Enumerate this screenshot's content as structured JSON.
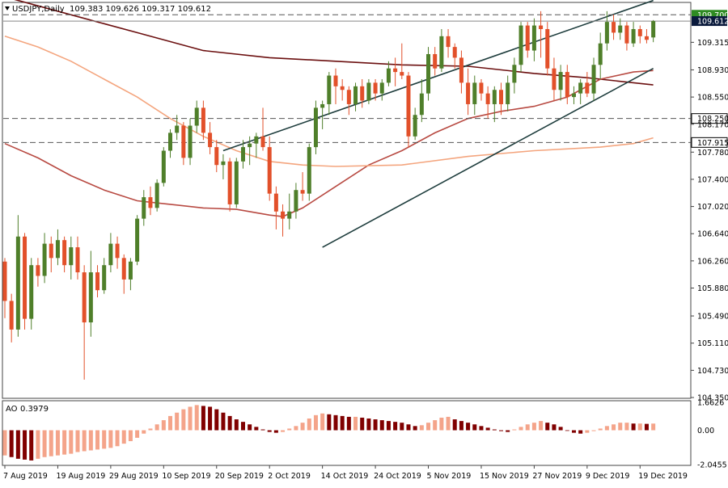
{
  "header": {
    "symbol": "USDJPY,Daily",
    "ohlc": "109.383 109.626 109.317 109.612"
  },
  "indicator": {
    "name": "AO",
    "value": "0.3979"
  },
  "colors": {
    "bull": "#4f7f2a",
    "bear": "#e2502a",
    "ma_slow": "#6b0f0f",
    "ma_mid": "#b84a42",
    "ma_long": "#f4a57e",
    "channel": "#1e3d3d",
    "grid": "#dddddd",
    "price_tag_green": "#2e8b22",
    "price_tag_dark": "#0a1a3c",
    "ao_up": "#f4a48a",
    "ao_down": "#800000"
  },
  "chart_data": [
    {
      "type": "candlestick",
      "title": "USDJPY,Daily",
      "x": [
        "7 Aug 2019",
        "8 Aug 2019",
        "9 Aug 2019",
        "12 Aug 2019",
        "13 Aug 2019",
        "14 Aug 2019",
        "15 Aug 2019",
        "16 Aug 2019",
        "19 Aug 2019",
        "20 Aug 2019",
        "21 Aug 2019",
        "22 Aug 2019",
        "23 Aug 2019",
        "26 Aug 2019",
        "27 Aug 2019",
        "28 Aug 2019",
        "29 Aug 2019",
        "30 Aug 2019",
        "2 Sep 2019",
        "3 Sep 2019",
        "4 Sep 2019",
        "5 Sep 2019",
        "6 Sep 2019",
        "9 Sep 2019",
        "10 Sep 2019",
        "11 Sep 2019",
        "12 Sep 2019",
        "13 Sep 2019",
        "16 Sep 2019",
        "17 Sep 2019",
        "18 Sep 2019",
        "19 Sep 2019",
        "20 Sep 2019",
        "23 Sep 2019",
        "24 Sep 2019",
        "25 Sep 2019",
        "26 Sep 2019",
        "27 Sep 2019",
        "30 Sep 2019",
        "1 Oct 2019",
        "2 Oct 2019",
        "3 Oct 2019",
        "4 Oct 2019",
        "7 Oct 2019",
        "8 Oct 2019",
        "9 Oct 2019",
        "10 Oct 2019",
        "11 Oct 2019",
        "14 Oct 2019",
        "15 Oct 2019",
        "16 Oct 2019",
        "17 Oct 2019",
        "18 Oct 2019",
        "21 Oct 2019",
        "22 Oct 2019",
        "23 Oct 2019",
        "24 Oct 2019",
        "25 Oct 2019",
        "28 Oct 2019",
        "29 Oct 2019",
        "30 Oct 2019",
        "31 Oct 2019",
        "1 Nov 2019",
        "4 Nov 2019",
        "5 Nov 2019",
        "6 Nov 2019",
        "7 Nov 2019",
        "8 Nov 2019",
        "11 Nov 2019",
        "12 Nov 2019",
        "13 Nov 2019",
        "14 Nov 2019",
        "15 Nov 2019",
        "18 Nov 2019",
        "19 Nov 2019",
        "20 Nov 2019",
        "21 Nov 2019",
        "22 Nov 2019",
        "25 Nov 2019",
        "26 Nov 2019",
        "27 Nov 2019",
        "28 Nov 2019",
        "29 Nov 2019",
        "2 Dec 2019",
        "3 Dec 2019",
        "4 Dec 2019",
        "5 Dec 2019",
        "6 Dec 2019",
        "9 Dec 2019",
        "10 Dec 2019",
        "11 Dec 2019",
        "12 Dec 2019",
        "13 Dec 2019",
        "16 Dec 2019",
        "17 Dec 2019",
        "18 Dec 2019",
        "19 Dec 2019",
        "20 Dec 2019",
        "23 Dec 2019"
      ],
      "x_tick_labels": [
        "7 Aug 2019",
        "19 Aug 2019",
        "29 Aug 2019",
        "10 Sep 2019",
        "20 Sep 2019",
        "2 Oct 2019",
        "14 Oct 2019",
        "24 Oct 2019",
        "5 Nov 2019",
        "15 Nov 2019",
        "27 Nov 2019",
        "9 Dec 2019",
        "19 Dec 2019"
      ],
      "y_tick_labels": [
        "109.315",
        "108.930",
        "108.550",
        "108.170",
        "107.780",
        "107.400",
        "107.020",
        "106.640",
        "106.260",
        "105.880",
        "105.490",
        "105.110",
        "104.730",
        "104.350"
      ],
      "ylim": [
        104.35,
        109.85
      ],
      "ohlc": [
        [
          106.25,
          106.3,
          105.46,
          105.7
        ],
        [
          105.7,
          105.8,
          105.12,
          105.3
        ],
        [
          105.3,
          106.9,
          105.2,
          106.6
        ],
        [
          106.6,
          106.65,
          105.3,
          105.45
        ],
        [
          105.45,
          106.3,
          105.3,
          106.2
        ],
        [
          106.2,
          106.3,
          105.9,
          106.05
        ],
        [
          106.05,
          106.65,
          105.95,
          106.5
        ],
        [
          106.5,
          106.6,
          106.1,
          106.3
        ],
        [
          106.3,
          106.7,
          106.2,
          106.55
        ],
        [
          106.55,
          106.6,
          106.1,
          106.2
        ],
        [
          106.2,
          106.6,
          106.0,
          106.45
        ],
        [
          106.45,
          106.6,
          106.0,
          106.1
        ],
        [
          106.1,
          106.2,
          104.6,
          105.4
        ],
        [
          105.4,
          106.4,
          105.2,
          106.1
        ],
        [
          106.1,
          106.2,
          105.75,
          105.85
        ],
        [
          105.85,
          106.3,
          105.8,
          106.2
        ],
        [
          106.2,
          106.65,
          106.1,
          106.5
        ],
        [
          106.5,
          106.6,
          106.15,
          106.3
        ],
        [
          106.3,
          106.35,
          105.8,
          106.0
        ],
        [
          106.0,
          106.3,
          105.85,
          106.25
        ],
        [
          106.25,
          106.9,
          106.2,
          106.85
        ],
        [
          106.85,
          107.25,
          106.75,
          107.15
        ],
        [
          107.15,
          107.3,
          106.9,
          107.0
        ],
        [
          107.0,
          107.4,
          106.95,
          107.35
        ],
        [
          107.35,
          107.85,
          107.3,
          107.8
        ],
        [
          107.8,
          108.1,
          107.7,
          108.05
        ],
        [
          108.05,
          108.3,
          107.95,
          108.15
        ],
        [
          108.15,
          108.2,
          107.6,
          107.7
        ],
        [
          107.7,
          108.25,
          107.6,
          108.15
        ],
        [
          108.15,
          108.5,
          108.05,
          108.4
        ],
        [
          108.4,
          108.5,
          107.95,
          108.05
        ],
        [
          108.05,
          108.2,
          107.75,
          107.85
        ],
        [
          107.85,
          107.95,
          107.5,
          107.6
        ],
        [
          107.6,
          107.75,
          107.4,
          107.65
        ],
        [
          107.65,
          107.7,
          106.95,
          107.05
        ],
        [
          107.05,
          107.7,
          107.0,
          107.65
        ],
        [
          107.65,
          107.95,
          107.55,
          107.85
        ],
        [
          107.85,
          108.0,
          107.6,
          107.9
        ],
        [
          107.9,
          108.05,
          107.7,
          108.0
        ],
        [
          108.0,
          108.4,
          107.8,
          107.85
        ],
        [
          107.85,
          108.0,
          107.1,
          107.2
        ],
        [
          107.2,
          107.3,
          106.7,
          106.95
        ],
        [
          106.95,
          107.05,
          106.6,
          106.85
        ],
        [
          106.85,
          107.2,
          106.7,
          106.95
        ],
        [
          106.95,
          107.35,
          106.85,
          107.25
        ],
        [
          107.25,
          107.5,
          107.1,
          107.2
        ],
        [
          107.2,
          107.9,
          107.1,
          107.85
        ],
        [
          107.85,
          108.5,
          107.75,
          108.4
        ],
        [
          108.4,
          108.5,
          108.1,
          108.45
        ],
        [
          108.45,
          108.9,
          108.3,
          108.85
        ],
        [
          108.85,
          108.95,
          108.45,
          108.7
        ],
        [
          108.7,
          108.8,
          108.5,
          108.65
        ],
        [
          108.65,
          108.7,
          108.3,
          108.45
        ],
        [
          108.45,
          108.75,
          108.35,
          108.7
        ],
        [
          108.7,
          108.8,
          108.4,
          108.5
        ],
        [
          108.5,
          108.8,
          108.45,
          108.75
        ],
        [
          108.75,
          108.8,
          108.5,
          108.6
        ],
        [
          108.6,
          108.8,
          108.5,
          108.75
        ],
        [
          108.75,
          109.05,
          108.7,
          108.95
        ],
        [
          108.95,
          109.1,
          108.7,
          108.9
        ],
        [
          108.9,
          109.3,
          108.8,
          108.85
        ],
        [
          108.85,
          108.9,
          107.85,
          108.0
        ],
        [
          108.0,
          108.4,
          107.95,
          108.3
        ],
        [
          108.3,
          108.8,
          108.2,
          108.6
        ],
        [
          108.6,
          109.25,
          108.5,
          109.15
        ],
        [
          109.15,
          109.25,
          108.85,
          108.95
        ],
        [
          108.95,
          109.5,
          108.9,
          109.4
        ],
        [
          109.4,
          109.5,
          109.1,
          109.25
        ],
        [
          109.25,
          109.3,
          108.95,
          109.1
        ],
        [
          109.1,
          109.2,
          108.6,
          108.75
        ],
        [
          108.75,
          108.95,
          108.3,
          108.45
        ],
        [
          108.45,
          108.85,
          108.3,
          108.75
        ],
        [
          108.75,
          108.8,
          108.5,
          108.6
        ],
        [
          108.6,
          108.7,
          108.25,
          108.45
        ],
        [
          108.45,
          108.7,
          108.2,
          108.65
        ],
        [
          108.65,
          108.75,
          108.3,
          108.45
        ],
        [
          108.45,
          108.85,
          108.35,
          108.75
        ],
        [
          108.75,
          109.1,
          108.6,
          109.0
        ],
        [
          109.0,
          109.6,
          108.9,
          109.55
        ],
        [
          109.55,
          109.6,
          109.1,
          109.2
        ],
        [
          109.2,
          109.65,
          109.05,
          109.55
        ],
        [
          109.55,
          109.75,
          109.1,
          109.5
        ],
        [
          109.5,
          109.6,
          108.85,
          108.95
        ],
        [
          108.95,
          109.1,
          108.5,
          108.65
        ],
        [
          108.65,
          109.0,
          108.5,
          108.9
        ],
        [
          108.9,
          109.0,
          108.45,
          108.55
        ],
        [
          108.55,
          108.7,
          108.45,
          108.6
        ],
        [
          108.6,
          108.8,
          108.45,
          108.75
        ],
        [
          108.75,
          108.9,
          108.55,
          108.6
        ],
        [
          108.6,
          109.1,
          108.5,
          109.0
        ],
        [
          109.0,
          109.45,
          108.8,
          109.3
        ],
        [
          109.3,
          109.75,
          109.2,
          109.6
        ],
        [
          109.6,
          109.7,
          109.35,
          109.45
        ],
        [
          109.45,
          109.65,
          109.35,
          109.55
        ],
        [
          109.55,
          109.6,
          109.2,
          109.3
        ],
        [
          109.3,
          109.6,
          109.25,
          109.5
        ],
        [
          109.5,
          109.55,
          109.3,
          109.4
        ],
        [
          109.4,
          109.5,
          109.3,
          109.35
        ],
        [
          109.383,
          109.626,
          109.317,
          109.612
        ]
      ],
      "moving_averages": [
        {
          "color": "ma_slow",
          "values": [
            [
              0,
              109.95
            ],
            [
              10,
              109.7
            ],
            [
              20,
              109.45
            ],
            [
              30,
              109.2
            ],
            [
              40,
              109.1
            ],
            [
              50,
              109.05
            ],
            [
              60,
              109.0
            ],
            [
              70,
              108.98
            ],
            [
              80,
              108.88
            ],
            [
              88,
              108.82
            ],
            [
              98,
              108.72
            ]
          ]
        },
        {
          "color": "ma_mid",
          "values": [
            [
              0,
              107.9
            ],
            [
              5,
              107.7
            ],
            [
              10,
              107.45
            ],
            [
              15,
              107.25
            ],
            [
              20,
              107.1
            ],
            [
              25,
              107.05
            ],
            [
              30,
              107.0
            ],
            [
              35,
              106.98
            ],
            [
              40,
              106.9
            ],
            [
              42,
              106.88
            ],
            [
              45,
              107.0
            ],
            [
              50,
              107.3
            ],
            [
              55,
              107.6
            ],
            [
              60,
              107.8
            ],
            [
              65,
              108.05
            ],
            [
              70,
              108.25
            ],
            [
              75,
              108.35
            ],
            [
              80,
              108.42
            ],
            [
              85,
              108.55
            ],
            [
              90,
              108.8
            ],
            [
              95,
              108.9
            ],
            [
              98,
              108.92
            ]
          ]
        },
        {
          "color": "ma_long",
          "values": [
            [
              0,
              109.4
            ],
            [
              5,
              109.25
            ],
            [
              10,
              109.05
            ],
            [
              15,
              108.8
            ],
            [
              20,
              108.55
            ],
            [
              25,
              108.25
            ],
            [
              30,
              108.0
            ],
            [
              35,
              107.8
            ],
            [
              40,
              107.65
            ],
            [
              45,
              107.6
            ],
            [
              50,
              107.58
            ],
            [
              60,
              107.6
            ],
            [
              70,
              107.72
            ],
            [
              80,
              107.8
            ],
            [
              90,
              107.85
            ],
            [
              95,
              107.9
            ],
            [
              98,
              107.98
            ]
          ]
        }
      ],
      "channel_lines": [
        [
          [
            33,
            107.8
          ],
          [
            98,
            109.9
          ]
        ],
        [
          [
            48,
            106.45
          ],
          [
            98,
            108.95
          ]
        ]
      ],
      "horizontal_levels": [
        {
          "value": 109.7,
          "label": "109.700",
          "tag": "price_tag_green",
          "style": "dashed"
        },
        {
          "value": 109.612,
          "label": "109.612",
          "tag": "price_tag_dark",
          "style": "solid"
        },
        {
          "value": 108.25,
          "label": "108.250",
          "tag": "none",
          "style": "dashed"
        },
        {
          "value": 107.915,
          "label": "107.915",
          "tag": "none",
          "style": "dashed"
        }
      ]
    },
    {
      "type": "bar",
      "title": "AO 0.3979",
      "y_tick_labels": [
        "1.6626",
        "0.00",
        "-2.0455"
      ],
      "ylim": [
        -2.0455,
        1.6626
      ],
      "values": [
        -1.5,
        -1.6,
        -1.7,
        -1.75,
        -1.8,
        -1.7,
        -1.6,
        -1.55,
        -1.5,
        -1.45,
        -1.4,
        -1.3,
        -1.25,
        -1.2,
        -1.15,
        -1.1,
        -1.05,
        -0.95,
        -0.8,
        -0.65,
        -0.45,
        -0.2,
        0.1,
        0.35,
        0.6,
        0.85,
        1.05,
        1.25,
        1.4,
        1.5,
        1.45,
        1.4,
        1.25,
        1.05,
        0.85,
        0.65,
        0.5,
        0.35,
        0.2,
        0.05,
        -0.1,
        -0.15,
        -0.1,
        0.1,
        0.25,
        0.45,
        0.7,
        0.9,
        1.0,
        0.95,
        0.9,
        0.85,
        0.8,
        0.8,
        0.75,
        0.7,
        0.65,
        0.6,
        0.55,
        0.5,
        0.45,
        0.35,
        0.25,
        0.3,
        0.45,
        0.6,
        0.75,
        0.8,
        0.65,
        0.55,
        0.45,
        0.35,
        0.25,
        0.15,
        0.05,
        -0.05,
        -0.1,
        0.05,
        0.2,
        0.35,
        0.45,
        0.55,
        0.45,
        0.35,
        0.2,
        0.0,
        -0.15,
        -0.2,
        -0.15,
        -0.05,
        0.1,
        0.25,
        0.35,
        0.45,
        0.45,
        0.4,
        0.4,
        0.38,
        0.3979
      ]
    }
  ]
}
